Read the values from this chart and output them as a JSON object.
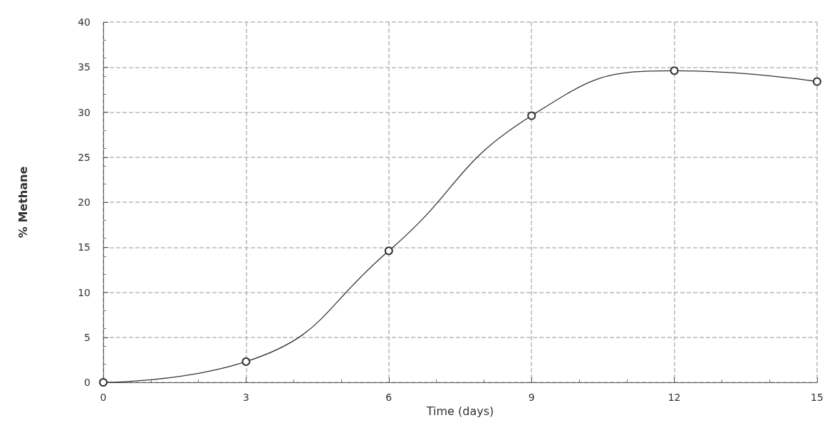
{
  "chart_data": {
    "type": "line",
    "xlabel": "Time (days)",
    "ylabel": "% Methane",
    "x": [
      0,
      3,
      6,
      9,
      12,
      15
    ],
    "series": [
      {
        "color": "#333333",
        "values": [
          0,
          2.3,
          14.6,
          29.6,
          34.6,
          33.4
        ]
      }
    ],
    "xlim": [
      0,
      15
    ],
    "xticks": [
      0,
      3,
      6,
      9,
      12,
      15
    ],
    "ylim": [
      0,
      40
    ],
    "yticks": [
      0,
      5,
      10,
      15,
      20,
      25,
      30,
      35,
      40
    ],
    "grid": true,
    "marker": "circle",
    "line_style": "solid"
  }
}
